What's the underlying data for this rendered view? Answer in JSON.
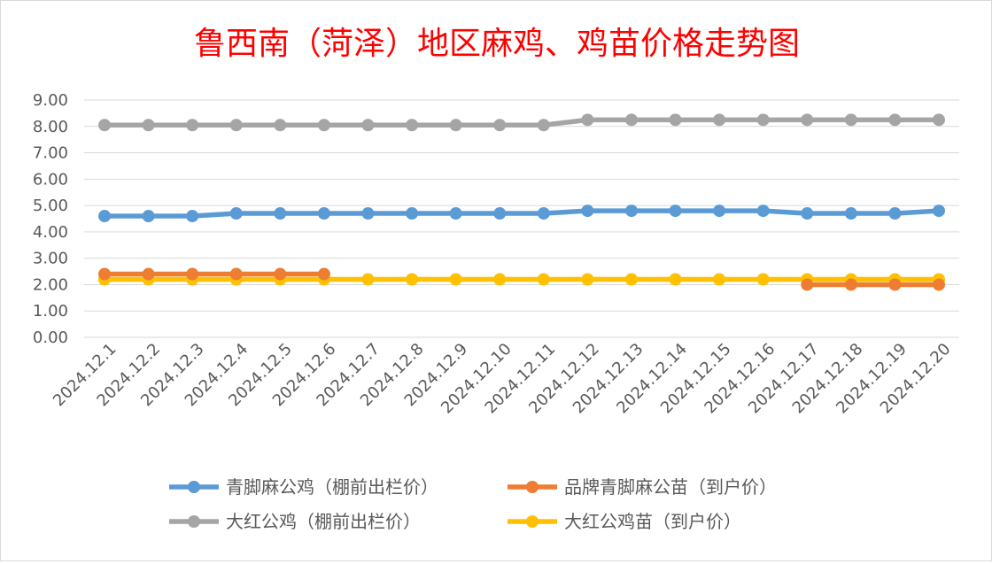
{
  "chart_data": {
    "type": "line",
    "title": "鲁西南（菏泽）地区麻鸡、鸡苗价格走势图",
    "xlabel": "",
    "ylabel": "",
    "ylim": [
      0,
      9
    ],
    "yticks": [
      "0.00",
      "1.00",
      "2.00",
      "3.00",
      "4.00",
      "5.00",
      "6.00",
      "7.00",
      "8.00",
      "9.00"
    ],
    "grid": true,
    "legend_position": "bottom",
    "categories": [
      "2024.12.1",
      "2024.12.2",
      "2024.12.3",
      "2024.12.4",
      "2024.12.5",
      "2024.12.6",
      "2024.12.7",
      "2024.12.8",
      "2024.12.9",
      "2024.12.10",
      "2024.12.11",
      "2024.12.12",
      "2024.12.13",
      "2024.12.14",
      "2024.12.15",
      "2024.12.16",
      "2024.12.17",
      "2024.12.18",
      "2024.12.19",
      "2024.12.20"
    ],
    "series": [
      {
        "name": "青脚麻公鸡（棚前出栏价）",
        "color": "#5b9bd5",
        "values": [
          4.6,
          4.6,
          4.6,
          4.7,
          4.7,
          4.7,
          4.7,
          4.7,
          4.7,
          4.7,
          4.7,
          4.8,
          4.8,
          4.8,
          4.8,
          4.8,
          4.7,
          4.7,
          4.7,
          4.8
        ]
      },
      {
        "name": "品牌青脚麻公苗（到户价）",
        "color": "#ed7d31",
        "values": [
          2.4,
          2.4,
          2.4,
          2.4,
          2.4,
          2.4,
          null,
          null,
          null,
          null,
          null,
          null,
          null,
          null,
          null,
          null,
          2.0,
          2.0,
          2.0,
          2.0
        ]
      },
      {
        "name": "大红公鸡（棚前出栏价）",
        "color": "#a5a5a5",
        "values": [
          8.05,
          8.05,
          8.05,
          8.05,
          8.05,
          8.05,
          8.05,
          8.05,
          8.05,
          8.05,
          8.05,
          8.25,
          8.25,
          8.25,
          8.25,
          8.25,
          8.25,
          8.25,
          8.25,
          8.25
        ]
      },
      {
        "name": "大红公鸡苗（到户价）",
        "color": "#ffc000",
        "values": [
          2.2,
          2.2,
          2.2,
          2.2,
          2.2,
          2.2,
          2.2,
          2.2,
          2.2,
          2.2,
          2.2,
          2.2,
          2.2,
          2.2,
          2.2,
          2.2,
          2.2,
          2.2,
          2.2,
          2.2
        ]
      }
    ],
    "title_color": "#ff0000"
  }
}
